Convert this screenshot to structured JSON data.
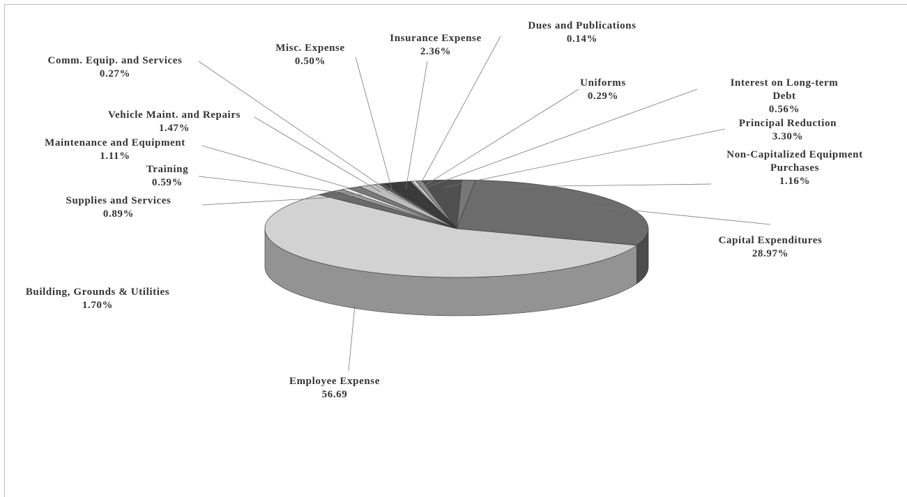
{
  "chart_data": {
    "type": "pie3d",
    "categories": [
      "Employee Expense",
      "Building, Grounds & Utilities",
      "Supplies and Services",
      "Training",
      "Maintenance and Equipment",
      "Vehicle Maint. and Repairs",
      "Comm. Equip. and Services",
      "Misc. Expense",
      "Insurance Expense",
      "Dues and Publications",
      "Uniforms",
      "Interest on Long-term Debt",
      "Principal Reduction",
      "Non-Capitalized Equipment Purchases",
      "Capital Expenditures"
    ],
    "values": [
      56.69,
      1.7,
      0.89,
      0.59,
      1.11,
      1.47,
      0.27,
      0.5,
      2.36,
      0.14,
      0.29,
      0.56,
      3.3,
      1.16,
      28.97
    ],
    "value_labels": [
      "56.69",
      "1.70%",
      "0.89%",
      "0.59%",
      "1.11%",
      "1.47%",
      "0.27%",
      "0.50%",
      "2.36%",
      "0.14%",
      "0.29%",
      "0.56%",
      "3.30%",
      "1.16%",
      "28.97%"
    ],
    "colors": [
      "#d2d2d2",
      "#6a6a6a",
      "#9a9a9a",
      "#e8e8e8",
      "#7a7a7a",
      "#bdbdbd",
      "#f0f0f0",
      "#555555",
      "#3a3a3a",
      "#cfcfcf",
      "#e0e0e0",
      "#8a8a8a",
      "#505050",
      "#777777",
      "#6c6c6c"
    ]
  }
}
